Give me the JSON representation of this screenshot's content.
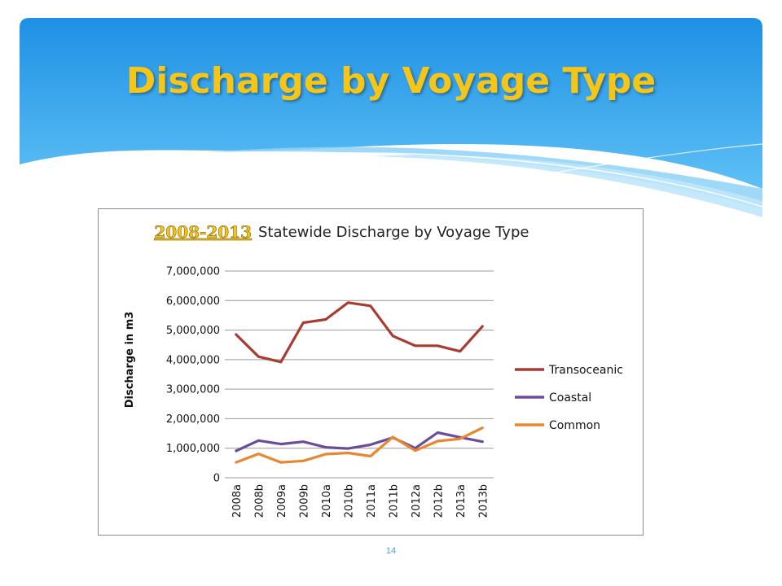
{
  "slide": {
    "title": "Discharge by Voyage Type",
    "page_number": "14"
  },
  "colors": {
    "header_top": "#1e90e4",
    "header_bottom": "#5ec0f5",
    "title": "#f5c518",
    "title_year": "#f5c518"
  },
  "chart_data": {
    "type": "line",
    "title_years": "2008-2013",
    "title": "Statewide Discharge by Voyage Type",
    "xlabel": "",
    "ylabel": "Discharge in m3",
    "ylim": [
      0,
      7000000
    ],
    "yticks": [
      "0",
      "1,000,000",
      "2,000,000",
      "3,000,000",
      "4,000,000",
      "5,000,000",
      "6,000,000",
      "7,000,000"
    ],
    "grid": true,
    "legend": "right",
    "categories": [
      "2008a",
      "2008b",
      "2009a",
      "2009b",
      "2010a",
      "2010b",
      "2011a",
      "2011b",
      "2012a",
      "2012b",
      "2013a",
      "2013b"
    ],
    "series": [
      {
        "name": "Transoceanic",
        "color": "#a83c32",
        "values": [
          4850000,
          4100000,
          3920000,
          5250000,
          5360000,
          5930000,
          5820000,
          4800000,
          4470000,
          4470000,
          4280000,
          5130000
        ]
      },
      {
        "name": "Coastal",
        "color": "#6a4c9c",
        "values": [
          910000,
          1260000,
          1140000,
          1220000,
          1030000,
          990000,
          1120000,
          1360000,
          1000000,
          1530000,
          1370000,
          1220000
        ]
      },
      {
        "name": "Common",
        "color": "#e8872f",
        "values": [
          520000,
          810000,
          520000,
          570000,
          800000,
          840000,
          730000,
          1380000,
          920000,
          1240000,
          1320000,
          1690000
        ]
      }
    ]
  }
}
